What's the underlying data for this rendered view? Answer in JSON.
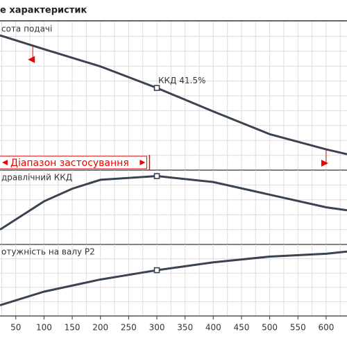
{
  "title": "е характеристик",
  "chart_data": [
    {
      "type": "line",
      "title": "сота подачі",
      "x": [
        22,
        100,
        200,
        300,
        400,
        500,
        600,
        637
      ],
      "series": [
        {
          "name": "висота подачі",
          "color": "#3a4350",
          "values": [
            90.7,
            81.4,
            69.8,
            55.3,
            39.5,
            24.2,
            14,
            10.7
          ]
        }
      ],
      "xlim": [
        22,
        637
      ],
      "ylim": [
        0,
        100
      ],
      "grid": true,
      "annotation": "ККД  41.5%",
      "highlight_x": 300,
      "markers_x": [
        80,
        600
      ],
      "range_label": "Діапазон застосування",
      "range_end_x": 287
    },
    {
      "type": "line",
      "title": "дравлічний ККД",
      "x": [
        22,
        100,
        150,
        200,
        300,
        400,
        500,
        600,
        637
      ],
      "series": [
        {
          "name": "ККД",
          "color": "#3a4350",
          "values": [
            20,
            58,
            75,
            87,
            92,
            84,
            67,
            50,
            46
          ]
        }
      ],
      "xlim": [
        22,
        637
      ],
      "ylim": [
        0,
        100
      ],
      "grid": true,
      "highlight_x": 300
    },
    {
      "type": "line",
      "title": "отужність на валу P2",
      "x": [
        22,
        100,
        200,
        300,
        400,
        500,
        600,
        637
      ],
      "series": [
        {
          "name": "P2",
          "color": "#3a4350",
          "values": [
            15,
            34,
            51,
            64,
            75,
            83,
            87,
            90
          ]
        }
      ],
      "xlim": [
        22,
        637
      ],
      "ylim": [
        0,
        100
      ],
      "grid": true,
      "highlight_x": 300,
      "xticks": [
        50,
        100,
        150,
        200,
        250,
        300,
        350,
        400,
        450,
        500,
        550,
        600
      ]
    }
  ]
}
